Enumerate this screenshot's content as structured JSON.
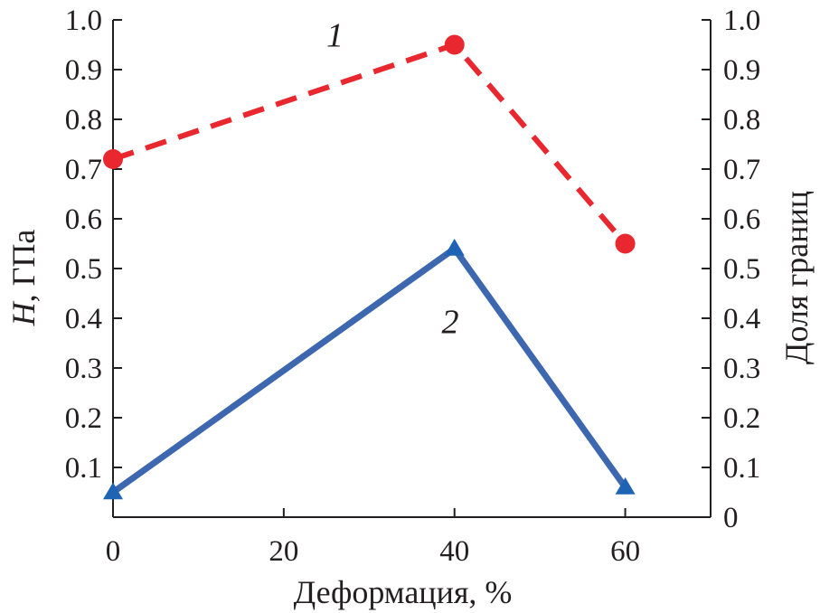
{
  "chart_data": {
    "type": "line",
    "xlabel": "Деформация, %",
    "ylabel_left": {
      "symbol": "H",
      "rest": ", ГПа"
    },
    "ylabel_right": "Доля границ",
    "xlim": [
      0,
      70
    ],
    "ylim_left": [
      0,
      1.0
    ],
    "ylim_right": [
      0,
      1.0
    ],
    "x_ticks": [
      0,
      20,
      40,
      60
    ],
    "x_tick_labels": [
      "0",
      "20",
      "40",
      "60"
    ],
    "y_left_ticks": [
      0.1,
      0.2,
      0.3,
      0.4,
      0.5,
      0.6,
      0.7,
      0.8,
      0.9,
      1.0
    ],
    "y_left_tick_labels": [
      "0.1",
      "0.2",
      "0.3",
      "0.4",
      "0.5",
      "0.6",
      "0.7",
      "0.8",
      "0.9",
      "1.0"
    ],
    "y_right_ticks": [
      0,
      0.1,
      0.2,
      0.3,
      0.4,
      0.5,
      0.6,
      0.7,
      0.8,
      0.9,
      1.0
    ],
    "y_right_tick_labels": [
      "0",
      "0.1",
      "0.2",
      "0.3",
      "0.4",
      "0.5",
      "0.6",
      "0.7",
      "0.8",
      "0.9",
      "1.0"
    ],
    "grid": false,
    "series": [
      {
        "label": "1",
        "axis": "left",
        "color": "#e8282e",
        "line_style": "dashed",
        "marker": "circle",
        "x": [
          0,
          40,
          60
        ],
        "y": [
          0.72,
          0.95,
          0.55
        ]
      },
      {
        "label": "2",
        "axis": "right",
        "color": "#3d67ae",
        "line_style": "solid",
        "marker": "triangle",
        "marker_color": "#1f63b5",
        "x": [
          0,
          40,
          60
        ],
        "y": [
          0.05,
          0.54,
          0.06
        ]
      }
    ]
  }
}
